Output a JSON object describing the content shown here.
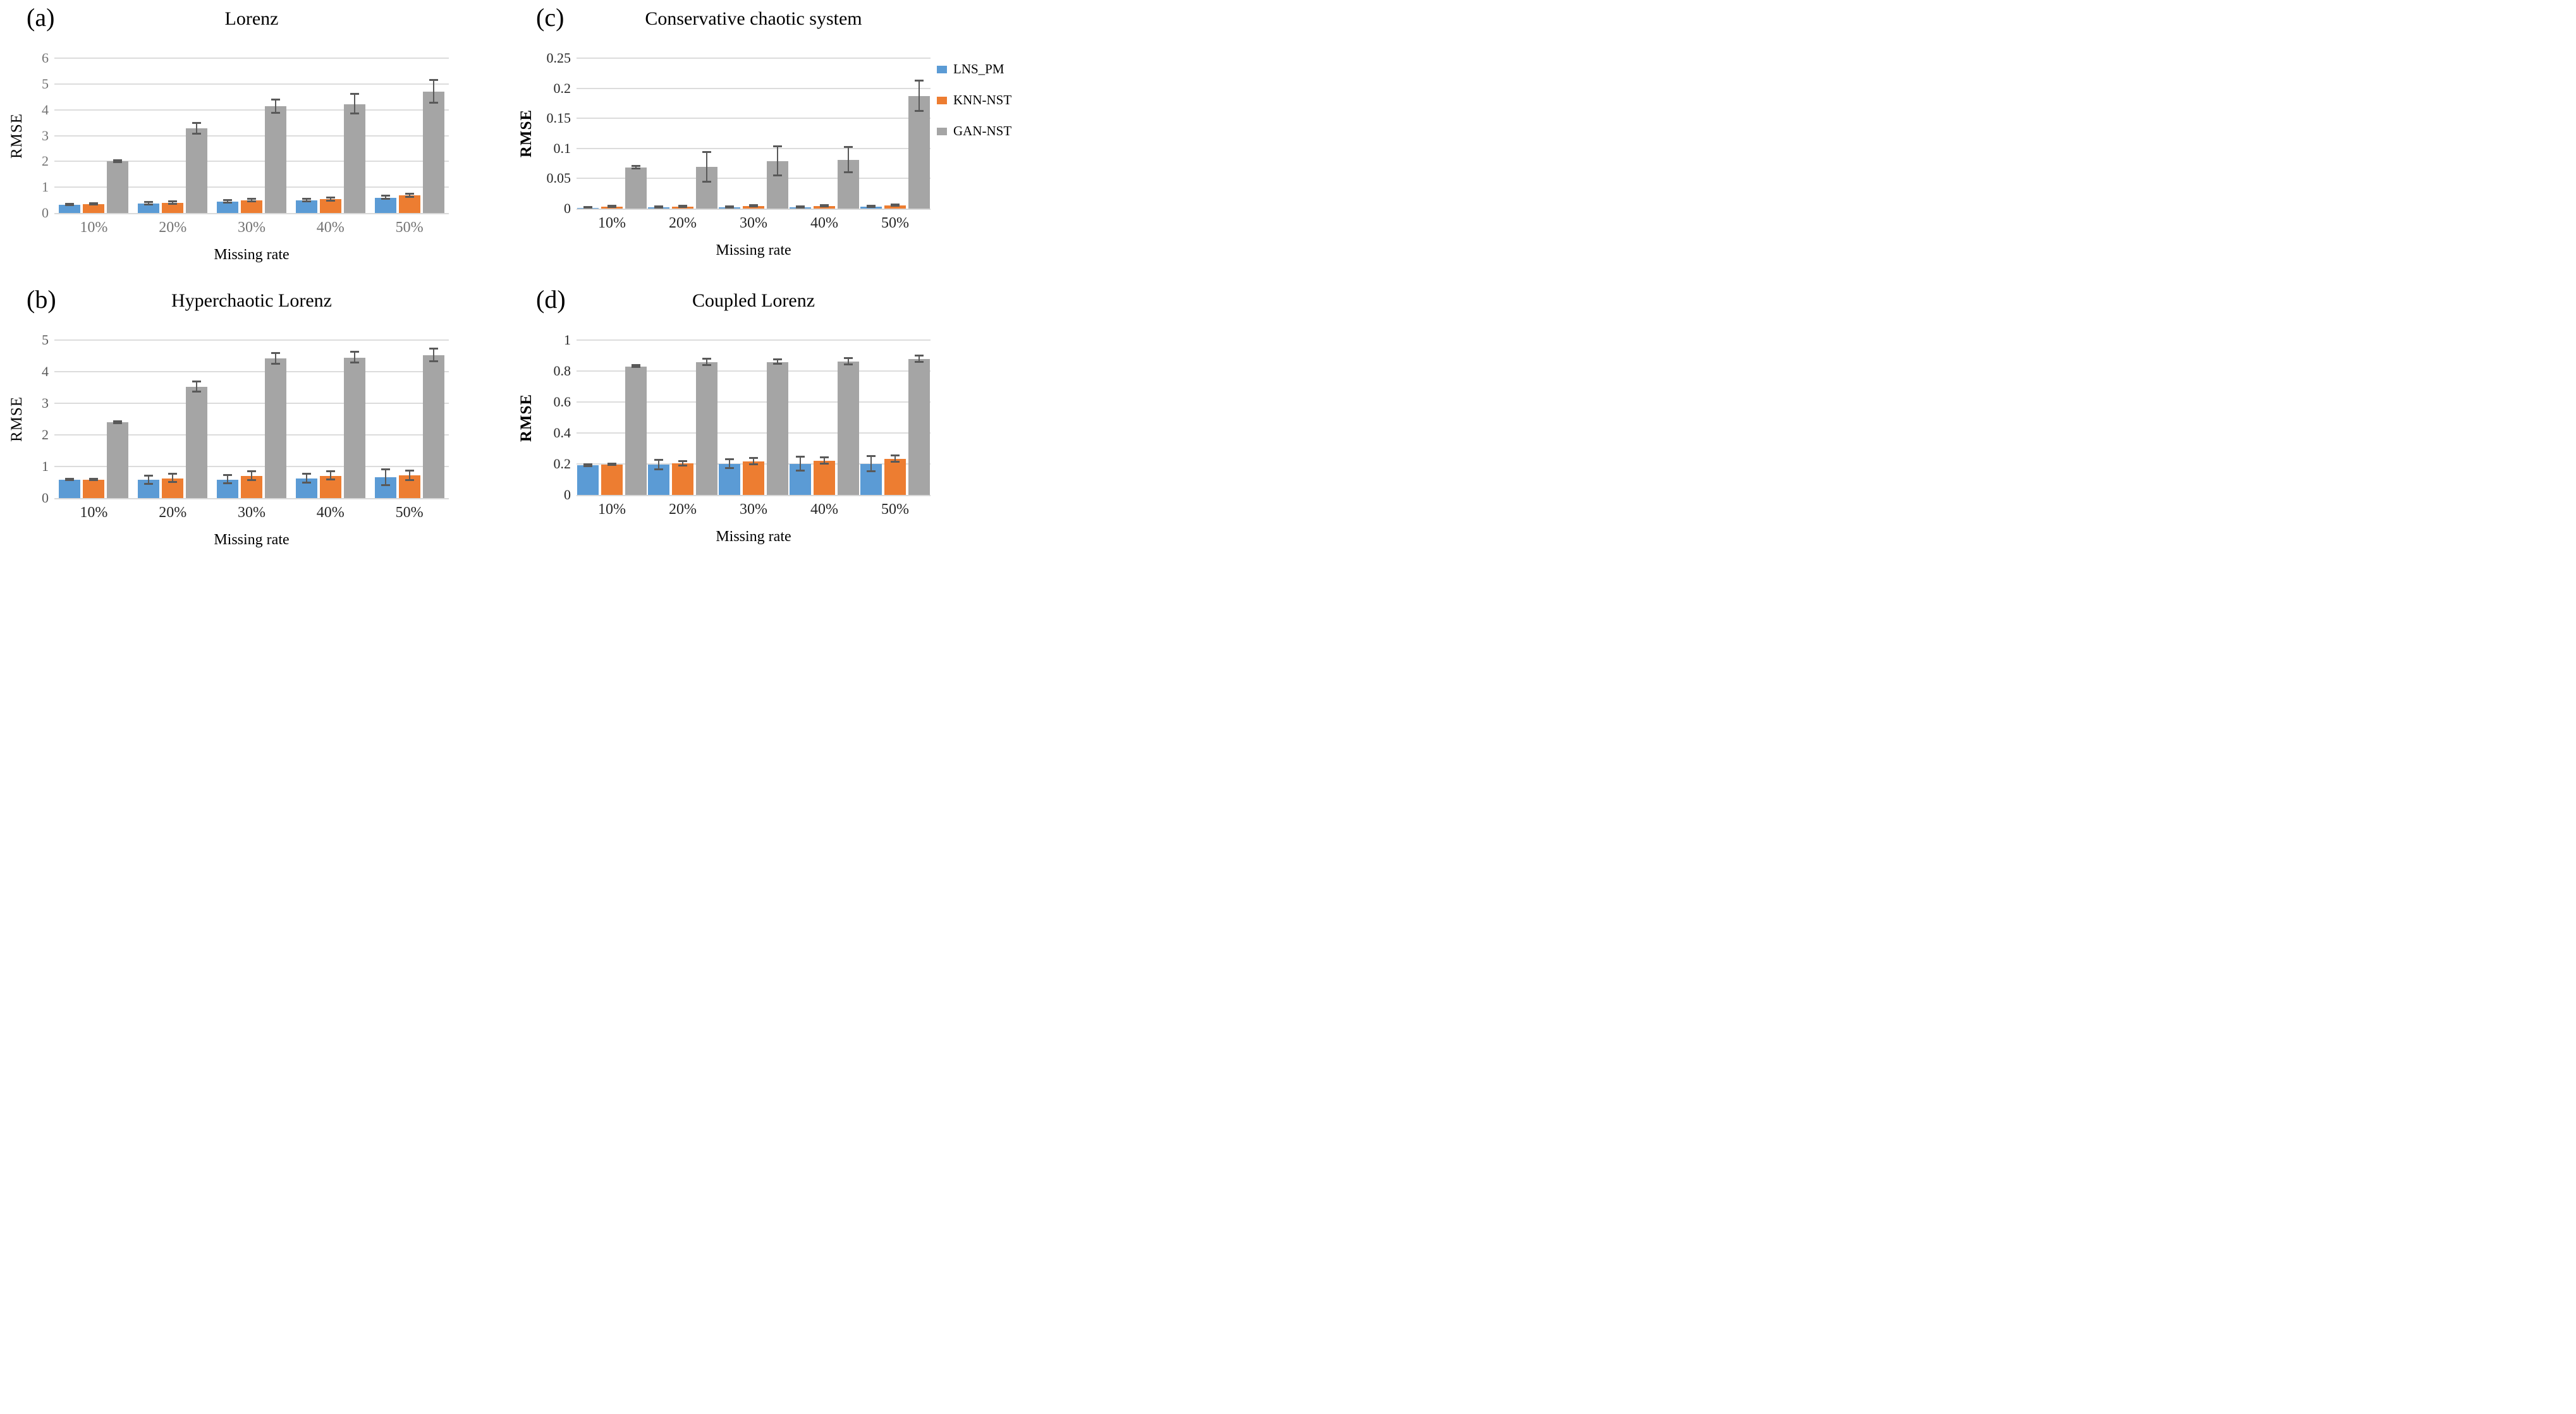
{
  "legend": {
    "items": [
      {
        "label": "LNS_PM",
        "color": "#5B9BD5"
      },
      {
        "label": "KNN-NST",
        "color": "#ED7D31"
      },
      {
        "label": "GAN-NST",
        "color": "#A5A5A5"
      }
    ]
  },
  "chart_data": [
    {
      "id": "a",
      "type": "bar",
      "panel_label": "(a)",
      "title": "Lorenz",
      "xlabel": "Missing rate",
      "ylabel": "RMSE",
      "categories": [
        "10%",
        "20%",
        "30%",
        "40%",
        "50%"
      ],
      "ylim": [
        0,
        6
      ],
      "grid": true,
      "legend_position": "right-of-panel-c",
      "axis_color": "#737373",
      "xtick_color": "#737373",
      "ylabel_bold": false,
      "yticks": [
        {
          "value": 0,
          "label": "0"
        },
        {
          "value": 1,
          "label": "1"
        },
        {
          "value": 2,
          "label": "2"
        },
        {
          "value": 3,
          "label": "3"
        },
        {
          "value": 4,
          "label": "4"
        },
        {
          "value": 5,
          "label": "5"
        },
        {
          "value": 6,
          "label": "6"
        }
      ],
      "series": [
        {
          "name": "LNS_PM",
          "color": "#5B9BD5",
          "values": [
            0.32,
            0.36,
            0.45,
            0.5,
            0.6
          ],
          "errors": [
            0.03,
            0.05,
            0.05,
            0.05,
            0.06
          ]
        },
        {
          "name": "KNN-NST",
          "color": "#ED7D31",
          "values": [
            0.34,
            0.4,
            0.48,
            0.53,
            0.68
          ],
          "errors": [
            0.03,
            0.05,
            0.05,
            0.06,
            0.06
          ]
        },
        {
          "name": "GAN-NST",
          "color": "#A5A5A5",
          "values": [
            2.0,
            3.27,
            4.13,
            4.22,
            4.7
          ],
          "errors": [
            0.04,
            0.22,
            0.25,
            0.38,
            0.45
          ]
        }
      ]
    },
    {
      "id": "b",
      "type": "bar",
      "panel_label": "(b)",
      "title": "Hyperchaotic Lorenz",
      "xlabel": "Missing rate",
      "ylabel": "RMSE",
      "categories": [
        "10%",
        "20%",
        "30%",
        "40%",
        "50%"
      ],
      "ylim": [
        0,
        5
      ],
      "grid": true,
      "axis_color": "#595959",
      "xtick_color": "#262626",
      "ylabel_bold": false,
      "yticks": [
        {
          "value": 0,
          "label": "0"
        },
        {
          "value": 1,
          "label": "1"
        },
        {
          "value": 2,
          "label": "2"
        },
        {
          "value": 3,
          "label": "3"
        },
        {
          "value": 4,
          "label": "4"
        },
        {
          "value": 5,
          "label": "5"
        }
      ],
      "series": [
        {
          "name": "LNS_PM",
          "color": "#5B9BD5",
          "values": [
            0.58,
            0.58,
            0.59,
            0.63,
            0.66
          ],
          "errors": [
            0.02,
            0.13,
            0.13,
            0.14,
            0.25
          ]
        },
        {
          "name": "KNN-NST",
          "color": "#ED7D31",
          "values": [
            0.59,
            0.63,
            0.7,
            0.71,
            0.72
          ],
          "errors": [
            0.02,
            0.13,
            0.14,
            0.13,
            0.15
          ]
        },
        {
          "name": "GAN-NST",
          "color": "#A5A5A5",
          "values": [
            2.4,
            3.52,
            4.42,
            4.45,
            4.53
          ],
          "errors": [
            0.03,
            0.16,
            0.17,
            0.17,
            0.2
          ]
        }
      ]
    },
    {
      "id": "c",
      "type": "bar",
      "panel_label": "(c)",
      "title": "Conservative chaotic system",
      "xlabel": "Missing rate",
      "ylabel": "RMSE",
      "categories": [
        "10%",
        "20%",
        "30%",
        "40%",
        "50%"
      ],
      "ylim": [
        0,
        0.25
      ],
      "grid": true,
      "axis_color": "#262626",
      "xtick_color": "#262626",
      "ylabel_bold": true,
      "yticks": [
        {
          "value": 0,
          "label": "0"
        },
        {
          "value": 0.05,
          "label": "0.05"
        },
        {
          "value": 0.1,
          "label": "0.1"
        },
        {
          "value": 0.15,
          "label": "0.15"
        },
        {
          "value": 0.2,
          "label": "0.2"
        },
        {
          "value": 0.25,
          "label": "0.25"
        }
      ],
      "series": [
        {
          "name": "LNS_PM",
          "color": "#5B9BD5",
          "values": [
            0.0015,
            0.002,
            0.002,
            0.0025,
            0.003
          ],
          "errors": [
            0.001,
            0.001,
            0.001,
            0.001,
            0.001
          ]
        },
        {
          "name": "KNN-NST",
          "color": "#ED7D31",
          "values": [
            0.003,
            0.0035,
            0.004,
            0.0045,
            0.005
          ],
          "errors": [
            0.0012,
            0.0012,
            0.0012,
            0.0012,
            0.0012
          ]
        },
        {
          "name": "GAN-NST",
          "color": "#A5A5A5",
          "values": [
            0.068,
            0.069,
            0.079,
            0.081,
            0.187
          ],
          "errors": [
            0.002,
            0.025,
            0.024,
            0.021,
            0.025
          ]
        }
      ]
    },
    {
      "id": "d",
      "type": "bar",
      "panel_label": "(d)",
      "title": "Coupled Lorenz",
      "xlabel": "Missing rate",
      "ylabel": "RMSE",
      "categories": [
        "10%",
        "20%",
        "30%",
        "40%",
        "50%"
      ],
      "ylim": [
        0,
        1
      ],
      "grid": true,
      "axis_color": "#262626",
      "xtick_color": "#262626",
      "ylabel_bold": true,
      "yticks": [
        {
          "value": 0,
          "label": "0"
        },
        {
          "value": 0.2,
          "label": "0.2"
        },
        {
          "value": 0.4,
          "label": "0.4"
        },
        {
          "value": 0.6,
          "label": "0.6"
        },
        {
          "value": 0.8,
          "label": "0.8"
        },
        {
          "value": 1,
          "label": "1"
        }
      ],
      "series": [
        {
          "name": "LNS_PM",
          "color": "#5B9BD5",
          "values": [
            0.19,
            0.195,
            0.2,
            0.2,
            0.2
          ],
          "errors": [
            0.005,
            0.03,
            0.03,
            0.045,
            0.05
          ]
        },
        {
          "name": "KNN-NST",
          "color": "#ED7D31",
          "values": [
            0.197,
            0.203,
            0.215,
            0.22,
            0.232
          ],
          "errors": [
            0.004,
            0.015,
            0.02,
            0.02,
            0.02
          ]
        },
        {
          "name": "GAN-NST",
          "color": "#A5A5A5",
          "values": [
            0.83,
            0.857,
            0.858,
            0.862,
            0.877
          ],
          "errors": [
            0.006,
            0.02,
            0.015,
            0.02,
            0.02
          ]
        }
      ]
    }
  ]
}
